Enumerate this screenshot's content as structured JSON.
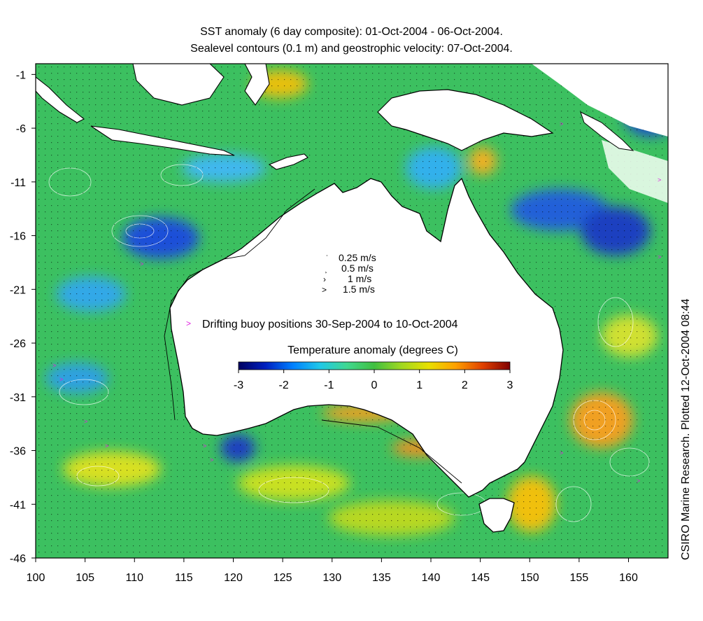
{
  "title_line1": "SST anomaly (6 day composite): 01-Oct-2004 - 06-Oct-2004.",
  "title_line2": "Sealevel contours (0.1 m) and geostrophic velocity: 07-Oct-2004.",
  "credit": "CSIRO Marine Research. Plotted 12-Oct-2004 08:44",
  "x_ticks": [
    "100",
    "105",
    "110",
    "115",
    "120",
    "125",
    "130",
    "135",
    "140",
    "145",
    "150",
    "155",
    "160"
  ],
  "y_ticks": [
    "-1",
    "-6",
    "-11",
    "-16",
    "-21",
    "-26",
    "-31",
    "-36",
    "-41",
    "-46"
  ],
  "xlim": [
    100,
    164
  ],
  "ylim": [
    -46,
    0
  ],
  "velocity_legend": [
    {
      "symbol": "˙",
      "label": "0.25 m/s"
    },
    {
      "symbol": "˲",
      "label": "0.5 m/s"
    },
    {
      "symbol": "›",
      "label": "1 m/s"
    },
    {
      "symbol": ">",
      "label": "1.5 m/s"
    }
  ],
  "buoy_legend": {
    "symbol": ">",
    "label": "Drifting buoy positions 30-Sep-2004 to 10-Oct-2004",
    "color": "#e020e0"
  },
  "colorbar": {
    "title": "Temperature anomaly (degrees C)",
    "range": [
      -3,
      3
    ],
    "ticks": [
      "-3",
      "-2",
      "-1",
      "0",
      "1",
      "2",
      "3"
    ],
    "colors": [
      "#000060",
      "#0020c0",
      "#0080ff",
      "#20c8e8",
      "#40d890",
      "#40c040",
      "#a0d820",
      "#e8e000",
      "#ffa000",
      "#e04000",
      "#800000"
    ]
  },
  "colors": {
    "ocean_base": "#3cc060",
    "land": "#ffffff",
    "coast": "#000000",
    "contour": "#ffffff"
  }
}
